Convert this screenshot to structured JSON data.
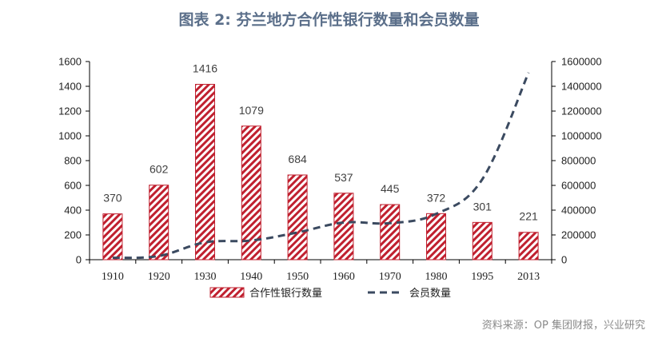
{
  "title": "图表 2: 芬兰地方合作性银行数量和会员数量",
  "source": "资料来源：OP 集团财报，兴业研究",
  "colors": {
    "bar": "#c0202f",
    "line": "#3b4a60",
    "title": "#5b6f8a"
  },
  "chart_data": {
    "type": "bar",
    "categories": [
      "1910",
      "1920",
      "1930",
      "1940",
      "1950",
      "1960",
      "1970",
      "1980",
      "1995",
      "2013"
    ],
    "series": [
      {
        "name": "合作性银行数量",
        "type": "bar",
        "axis": "left",
        "pattern": "diagonal-hatch",
        "values": [
          370,
          602,
          1416,
          1079,
          684,
          537,
          445,
          372,
          301,
          221
        ],
        "labels": [
          "370",
          "602",
          "1416",
          "1079",
          "684",
          "537",
          "445",
          "372",
          "301",
          "221"
        ]
      },
      {
        "name": "会员数量",
        "type": "line",
        "axis": "right",
        "style": "dashed",
        "values": [
          15000,
          30000,
          140000,
          155000,
          220000,
          300000,
          295000,
          370000,
          650000,
          1510000
        ]
      }
    ],
    "y_left": {
      "ylim": [
        0,
        1600
      ],
      "ticks": [
        "0",
        "200",
        "400",
        "600",
        "800",
        "1000",
        "1200",
        "1400",
        "1600"
      ]
    },
    "y_right": {
      "ylim": [
        0,
        1600000
      ],
      "ticks": [
        "0",
        "200000",
        "400000",
        "600000",
        "800000",
        "1000000",
        "1200000",
        "1400000",
        "1600000"
      ]
    },
    "legend_position": "bottom",
    "grid": false
  }
}
